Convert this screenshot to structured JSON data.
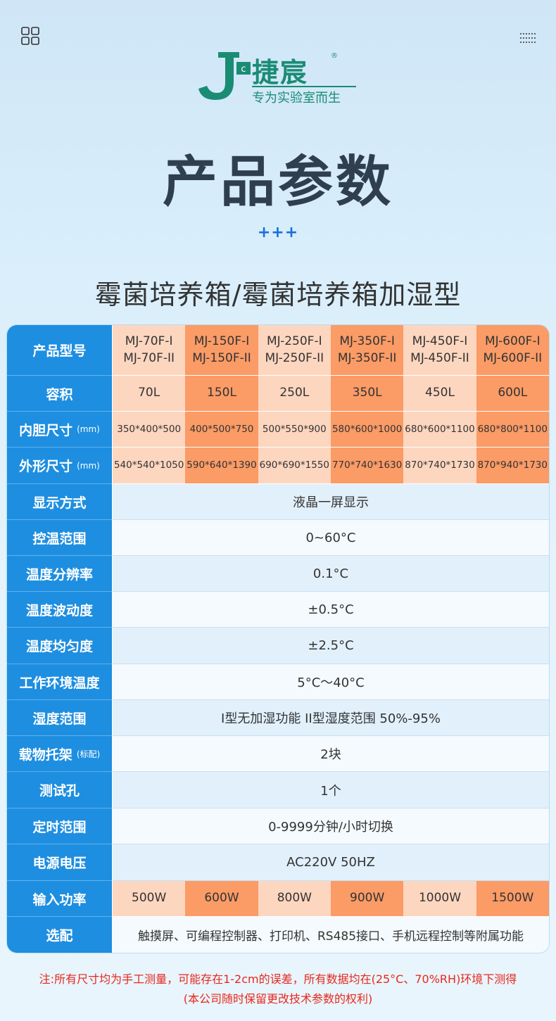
{
  "header": {
    "left_icon": "app-grid-icon",
    "right_icon": "dots-grid-icon",
    "brand_name": "捷宸",
    "brand_reg": "®",
    "brand_letter": "c",
    "tagline": "专为实验室而生"
  },
  "title": "产品参数",
  "decoration": "+++",
  "subtitle": "霉菌培养箱/霉菌培养箱加湿型",
  "colors": {
    "header_blue": "#1e8ee0",
    "cell_light": "#fdd6bf",
    "cell_dark": "#fb9b66",
    "note_red": "#e8281c",
    "brand_green": "#1a8c74"
  },
  "table": {
    "model": {
      "label": "产品型号",
      "values": [
        [
          "MJ-70F-I",
          "MJ-70F-II"
        ],
        [
          "MJ-150F-I",
          "MJ-150F-II"
        ],
        [
          "MJ-250F-I",
          "MJ-250F-II"
        ],
        [
          "MJ-350F-I",
          "MJ-350F-II"
        ],
        [
          "MJ-450F-I",
          "MJ-450F-II"
        ],
        [
          "MJ-600F-I",
          "MJ-600F-II"
        ]
      ]
    },
    "volume": {
      "label": "容积",
      "values": [
        "70L",
        "150L",
        "250L",
        "350L",
        "450L",
        "600L"
      ]
    },
    "inner": {
      "label": "内胆尺寸",
      "unit": "(mm)",
      "values": [
        "350*400*500",
        "400*500*750",
        "500*550*900",
        "580*600*1000",
        "680*600*1100",
        "680*800*1100"
      ]
    },
    "outer": {
      "label": "外形尺寸",
      "unit": "(mm)",
      "values": [
        "540*540*1050",
        "590*640*1390",
        "690*690*1550",
        "770*740*1630",
        "870*740*1730",
        "870*940*1730"
      ]
    },
    "display": {
      "label": "显示方式",
      "value": "液晶一屏显示"
    },
    "temp_range": {
      "label": "控温范围",
      "value": "0~60°C"
    },
    "resolution": {
      "label": "温度分辨率",
      "value": "0.1°C"
    },
    "fluctuation": {
      "label": "温度波动度",
      "value": "±0.5°C"
    },
    "uniformity": {
      "label": "温度均匀度",
      "value": "±2.5°C"
    },
    "ambient": {
      "label": "工作环境温度",
      "value": "5°C～40°C"
    },
    "humidity": {
      "label": "湿度范围",
      "value": "I型无加湿功能 II型湿度范围 50%-95%"
    },
    "shelves": {
      "label": "载物托架",
      "unit": "(标配)",
      "value": "2块"
    },
    "test_hole": {
      "label": "测试孔",
      "value": "1个"
    },
    "timer": {
      "label": "定时范围",
      "value": "0-9999分钟/小时切换"
    },
    "voltage": {
      "label": "电源电压",
      "value": "AC220V 50HZ"
    },
    "power": {
      "label": "输入功率",
      "values": [
        "500W",
        "600W",
        "800W",
        "900W",
        "1000W",
        "1500W"
      ]
    },
    "options": {
      "label": "选配",
      "value": "触摸屏、可编程控制器、打印机、RS485接口、手机远程控制等附属功能"
    }
  },
  "notes": {
    "line1": "注:所有尺寸均为手工测量，可能存在1-2cm的误差，所有数据均在(25°C、70%RH)环境下测得",
    "line2": "(本公司随时保留更改技术参数的权利)"
  }
}
